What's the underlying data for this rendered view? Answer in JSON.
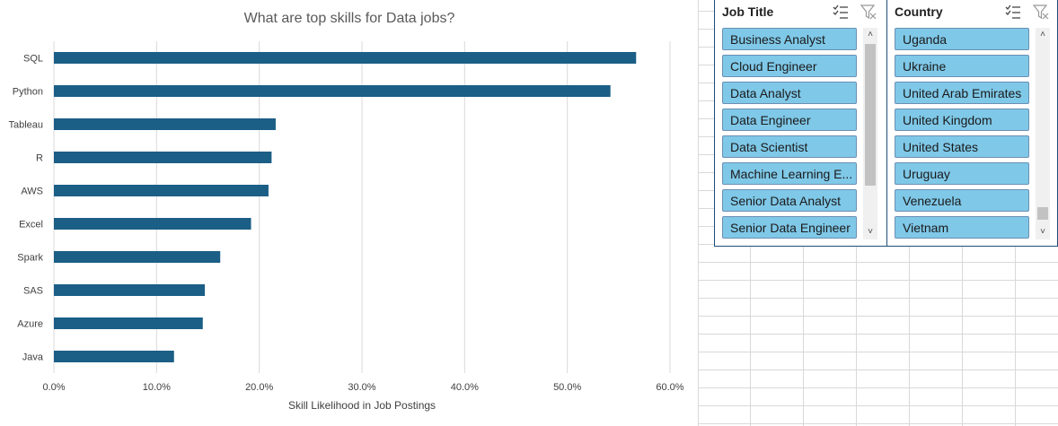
{
  "chart_data": {
    "type": "bar",
    "orientation": "horizontal",
    "title": "What are top skills for Data jobs?",
    "xlabel": "Skill Likelihood in Job Postings",
    "ylabel": "",
    "categories": [
      "SQL",
      "Python",
      "Tableau",
      "R",
      "AWS",
      "Excel",
      "Spark",
      "SAS",
      "Azure",
      "Java"
    ],
    "values": [
      0.567,
      0.542,
      0.216,
      0.212,
      0.209,
      0.192,
      0.162,
      0.147,
      0.145,
      0.117
    ],
    "xlim": [
      0,
      0.6
    ],
    "xticks": [
      0,
      0.1,
      0.2,
      0.3,
      0.4,
      0.5,
      0.6
    ],
    "xtick_labels": [
      "0.0%",
      "10.0%",
      "20.0%",
      "30.0%",
      "40.0%",
      "50.0%",
      "60.0%"
    ],
    "grid": "vertical",
    "bar_color": "#1b5e86"
  },
  "slicers": [
    {
      "title": "Job Title",
      "items": [
        "Business Analyst",
        "Cloud Engineer",
        "Data Analyst",
        "Data Engineer",
        "Data Scientist",
        "Machine Learning E...",
        "Senior Data Analyst",
        "Senior Data Engineer"
      ]
    },
    {
      "title": "Country",
      "items": [
        "Uganda",
        "Ukraine",
        "United Arab Emirates",
        "United Kingdom",
        "United States",
        "Uruguay",
        "Venezuela",
        "Vietnam"
      ]
    }
  ],
  "icons": {
    "multi_select": "multi-select-icon",
    "clear_filter": "clear-filter-icon",
    "scroll_up": "chevron-up-icon",
    "scroll_down": "chevron-down-icon"
  }
}
